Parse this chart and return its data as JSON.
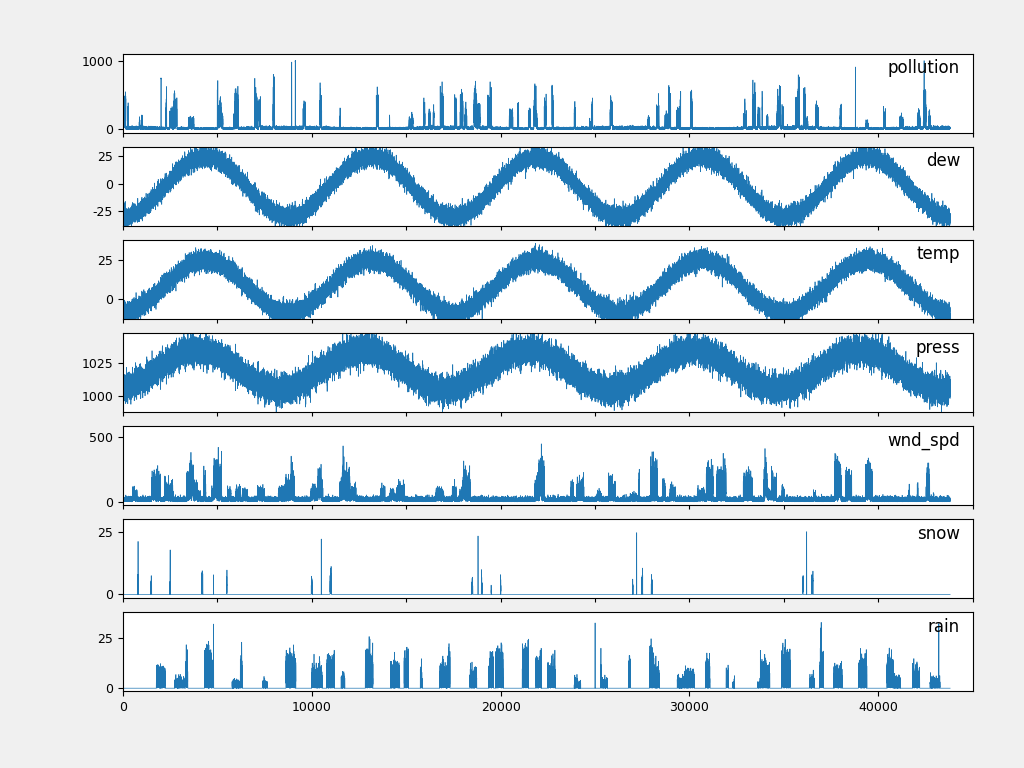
{
  "subplots": [
    {
      "label": "pollution",
      "yticks": [
        0,
        1000
      ],
      "ylim": [
        -50,
        1100
      ]
    },
    {
      "label": "dew",
      "yticks": [
        -25,
        0,
        25
      ],
      "ylim": [
        -38,
        33
      ]
    },
    {
      "label": "temp",
      "yticks": [
        0,
        25
      ],
      "ylim": [
        -13,
        38
      ]
    },
    {
      "label": "press",
      "yticks": [
        1000,
        1025
      ],
      "ylim": [
        988,
        1048
      ]
    },
    {
      "label": "wnd_spd",
      "yticks": [
        0,
        500
      ],
      "ylim": [
        -25,
        580
      ]
    },
    {
      "label": "snow",
      "yticks": [
        0,
        25
      ],
      "ylim": [
        -1.5,
        30
      ]
    },
    {
      "label": "rain",
      "yticks": [
        0,
        25
      ],
      "ylim": [
        -1.5,
        38
      ]
    }
  ],
  "n_points": 43800,
  "x_max": 45000,
  "xticks": [
    0,
    10000,
    20000,
    30000,
    40000
  ],
  "line_color": "#1f77b4",
  "line_width": 0.5,
  "background_color": "#f0f0f0",
  "axes_facecolor": "#ffffff"
}
